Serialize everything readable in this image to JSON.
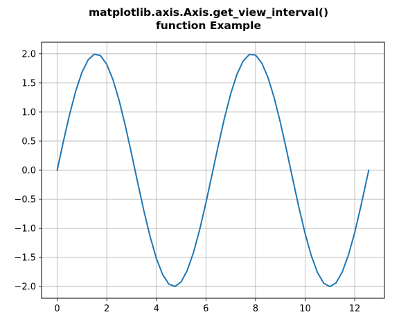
{
  "chart_data": {
    "type": "line",
    "title_lines": [
      "matplotlib.axis.Axis.get_view_interval()",
      "function Example"
    ],
    "xlabel": "",
    "ylabel": "",
    "xlim": [
      -0.63,
      13.2
    ],
    "ylim": [
      -2.2,
      2.2
    ],
    "grid": true,
    "x_ticks": [
      0,
      2,
      4,
      6,
      8,
      10,
      12
    ],
    "x_tick_labels": [
      "0",
      "2",
      "4",
      "6",
      "8",
      "10",
      "12"
    ],
    "y_ticks": [
      2.0,
      1.5,
      1.0,
      0.5,
      0.0,
      -0.5,
      -1.0,
      -1.5,
      -2.0
    ],
    "y_tick_labels": [
      "2.0",
      "1.5",
      "1.0",
      "0.5",
      "0.0",
      "−0.5",
      "−1.0",
      "−1.5",
      "−2.0"
    ],
    "series": [
      {
        "color": "#1f77b4",
        "x": [
          0.0,
          0.25,
          0.5,
          0.75,
          1.0,
          1.25,
          1.5,
          1.75,
          2.0,
          2.25,
          2.5,
          2.75,
          3.0,
          3.25,
          3.5,
          3.75,
          4.0,
          4.25,
          4.5,
          4.75,
          5.0,
          5.25,
          5.5,
          5.75,
          6.0,
          6.25,
          6.5,
          6.75,
          7.0,
          7.25,
          7.5,
          7.75,
          8.0,
          8.25,
          8.5,
          8.75,
          9.0,
          9.25,
          9.5,
          9.75,
          10.0,
          10.25,
          10.5,
          10.75,
          11.0,
          11.25,
          11.5,
          11.75,
          12.0,
          12.25,
          12.566
        ],
        "y": [
          0.0,
          0.495,
          0.959,
          1.363,
          1.683,
          1.898,
          1.995,
          1.968,
          1.819,
          1.556,
          1.197,
          0.763,
          0.282,
          -0.217,
          -0.702,
          -1.143,
          -1.514,
          -1.789,
          -1.955,
          -1.999,
          -1.918,
          -1.718,
          -1.411,
          -1.017,
          -0.559,
          -0.066,
          0.43,
          0.901,
          1.314,
          1.646,
          1.876,
          1.989,
          1.979,
          1.845,
          1.596,
          1.249,
          0.824,
          0.348,
          -0.15,
          -0.64,
          -1.088,
          -1.469,
          -1.759,
          -1.941,
          -2.0,
          -1.935,
          -1.747,
          -1.452,
          -1.073,
          -0.617,
          0.0
        ]
      }
    ]
  }
}
